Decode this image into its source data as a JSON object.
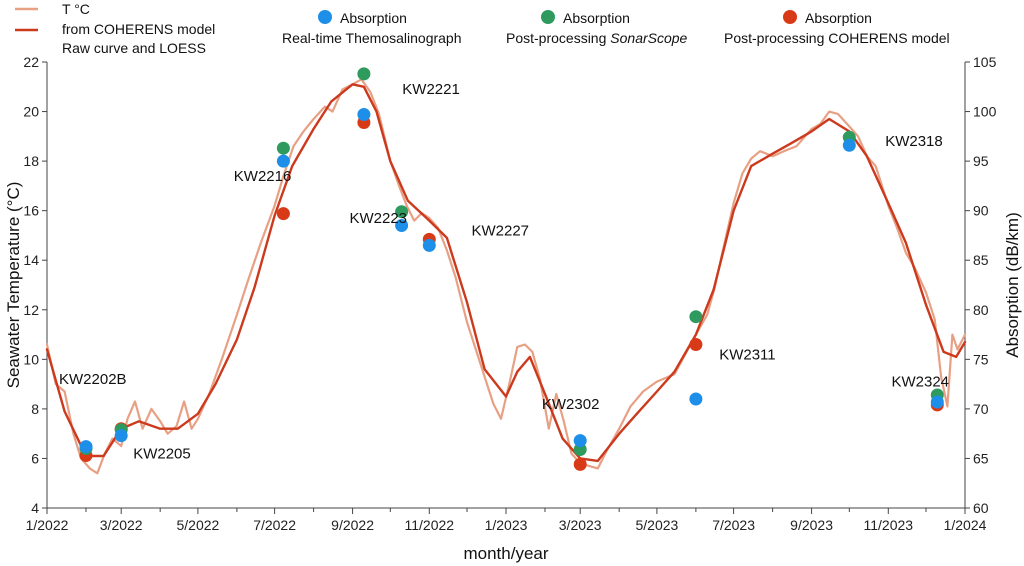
{
  "chart_data": {
    "type": "line",
    "xlabel": "month/year",
    "ylabel_left": "Seawater Temperature (°C)",
    "ylabel_right": "Absorption (dB/km)",
    "xlim": [
      "2022-01",
      "2024-01"
    ],
    "ylim_left": [
      4,
      22
    ],
    "ylim_right": [
      60,
      105
    ],
    "grid": false,
    "x_ticks": [
      "1/2022",
      "3/2022",
      "5/2022",
      "7/2022",
      "9/2022",
      "11/2022",
      "1/2023",
      "3/2023",
      "5/2023",
      "7/2023",
      "9/2023",
      "11/2023",
      "1/2024"
    ],
    "y_ticks_left": [
      4,
      6,
      8,
      10,
      12,
      14,
      16,
      18,
      20,
      22
    ],
    "y_ticks_right": [
      60,
      65,
      70,
      75,
      80,
      85,
      90,
      95,
      100,
      105
    ],
    "legend": {
      "placement": "top",
      "temp_label": "T °C",
      "temp_desc_1": "from COHERENS model",
      "temp_desc_2": "Raw curve and LOESS",
      "abs_label_1": "Absorption",
      "abs_desc_1": "Real-time Themosalinograph",
      "abs_label_2": "Absorption",
      "abs_desc_2a": "Post-processing ",
      "abs_desc_2b": "SonarScope",
      "abs_label_3": "Absorption",
      "abs_desc_3": "Post-processing COHERENS model"
    },
    "series": [
      {
        "kind": "raw",
        "axis": "left",
        "color": "#e8a084",
        "points": [
          [
            "2022-01-01",
            10.6
          ],
          [
            "2022-01-08",
            9.0
          ],
          [
            "2022-01-15",
            8.7
          ],
          [
            "2022-01-22",
            7.0
          ],
          [
            "2022-01-28",
            6.0
          ],
          [
            "2022-02-04",
            5.6
          ],
          [
            "2022-02-10",
            5.4
          ],
          [
            "2022-02-16",
            6.2
          ],
          [
            "2022-02-22",
            6.8
          ],
          [
            "2022-03-01",
            6.5
          ],
          [
            "2022-03-06",
            7.6
          ],
          [
            "2022-03-12",
            8.3
          ],
          [
            "2022-03-18",
            7.2
          ],
          [
            "2022-03-25",
            8.0
          ],
          [
            "2022-04-01",
            7.5
          ],
          [
            "2022-04-07",
            7.0
          ],
          [
            "2022-04-14",
            7.3
          ],
          [
            "2022-04-20",
            8.3
          ],
          [
            "2022-04-26",
            7.2
          ],
          [
            "2022-05-01",
            7.6
          ],
          [
            "2022-05-10",
            8.6
          ],
          [
            "2022-05-20",
            10.0
          ],
          [
            "2022-06-01",
            11.8
          ],
          [
            "2022-06-10",
            13.2
          ],
          [
            "2022-06-20",
            14.7
          ],
          [
            "2022-07-01",
            16.2
          ],
          [
            "2022-07-08",
            17.4
          ],
          [
            "2022-07-16",
            18.6
          ],
          [
            "2022-07-24",
            19.2
          ],
          [
            "2022-08-01",
            19.7
          ],
          [
            "2022-08-10",
            20.2
          ],
          [
            "2022-08-16",
            20.0
          ],
          [
            "2022-08-24",
            20.9
          ],
          [
            "2022-09-01",
            21.1
          ],
          [
            "2022-09-08",
            21.3
          ],
          [
            "2022-09-15",
            20.8
          ],
          [
            "2022-09-22",
            19.9
          ],
          [
            "2022-10-01",
            18.0
          ],
          [
            "2022-10-08",
            17.0
          ],
          [
            "2022-10-14",
            16.2
          ],
          [
            "2022-10-20",
            15.6
          ],
          [
            "2022-10-26",
            15.9
          ],
          [
            "2022-11-01",
            15.7
          ],
          [
            "2022-11-08",
            15.3
          ],
          [
            "2022-11-15",
            14.4
          ],
          [
            "2022-11-22",
            13.3
          ],
          [
            "2022-12-01",
            11.5
          ],
          [
            "2022-12-08",
            10.4
          ],
          [
            "2022-12-15",
            9.3
          ],
          [
            "2022-12-22",
            8.2
          ],
          [
            "2022-12-28",
            7.6
          ],
          [
            "2023-01-04",
            9.1
          ],
          [
            "2023-01-10",
            10.5
          ],
          [
            "2023-01-16",
            10.6
          ],
          [
            "2023-01-22",
            10.3
          ],
          [
            "2023-01-28",
            9.2
          ],
          [
            "2023-02-04",
            7.2
          ],
          [
            "2023-02-10",
            8.6
          ],
          [
            "2023-02-16",
            7.5
          ],
          [
            "2023-02-22",
            6.2
          ],
          [
            "2023-03-01",
            5.8
          ],
          [
            "2023-03-08",
            5.7
          ],
          [
            "2023-03-15",
            5.6
          ],
          [
            "2023-03-22",
            6.3
          ],
          [
            "2023-04-01",
            7.2
          ],
          [
            "2023-04-10",
            8.1
          ],
          [
            "2023-04-20",
            8.7
          ],
          [
            "2023-05-01",
            9.1
          ],
          [
            "2023-05-15",
            9.4
          ],
          [
            "2023-06-01",
            11.0
          ],
          [
            "2023-06-10",
            11.8
          ],
          [
            "2023-06-16",
            12.9
          ],
          [
            "2023-06-22",
            14.3
          ],
          [
            "2023-07-01",
            16.3
          ],
          [
            "2023-07-08",
            17.5
          ],
          [
            "2023-07-15",
            18.1
          ],
          [
            "2023-07-22",
            18.4
          ],
          [
            "2023-08-01",
            18.2
          ],
          [
            "2023-08-10",
            18.4
          ],
          [
            "2023-08-20",
            18.6
          ],
          [
            "2023-09-01",
            19.3
          ],
          [
            "2023-09-08",
            19.5
          ],
          [
            "2023-09-15",
            20.0
          ],
          [
            "2023-09-22",
            19.9
          ],
          [
            "2023-10-01",
            19.4
          ],
          [
            "2023-10-08",
            19.0
          ],
          [
            "2023-10-15",
            18.2
          ],
          [
            "2023-10-22",
            17.8
          ],
          [
            "2023-11-01",
            16.2
          ],
          [
            "2023-11-08",
            15.3
          ],
          [
            "2023-11-15",
            14.3
          ],
          [
            "2023-11-22",
            13.7
          ],
          [
            "2023-12-01",
            12.7
          ],
          [
            "2023-12-08",
            11.6
          ],
          [
            "2023-12-13",
            9.3
          ],
          [
            "2023-12-18",
            8.1
          ],
          [
            "2023-12-22",
            11.0
          ],
          [
            "2023-12-26",
            10.4
          ],
          [
            "2024-01-01",
            11.0
          ]
        ]
      },
      {
        "kind": "loess",
        "axis": "left",
        "color": "#cc3a1e",
        "points": [
          [
            "2022-01-01",
            10.4
          ],
          [
            "2022-01-15",
            7.9
          ],
          [
            "2022-02-01",
            6.1
          ],
          [
            "2022-02-15",
            6.1
          ],
          [
            "2022-03-01",
            7.2
          ],
          [
            "2022-03-15",
            7.5
          ],
          [
            "2022-04-01",
            7.2
          ],
          [
            "2022-04-15",
            7.2
          ],
          [
            "2022-05-01",
            7.8
          ],
          [
            "2022-05-15",
            9.0
          ],
          [
            "2022-06-01",
            10.8
          ],
          [
            "2022-06-15",
            12.9
          ],
          [
            "2022-07-01",
            15.8
          ],
          [
            "2022-07-15",
            17.8
          ],
          [
            "2022-08-01",
            19.3
          ],
          [
            "2022-08-15",
            20.4
          ],
          [
            "2022-09-01",
            21.1
          ],
          [
            "2022-09-10",
            21.0
          ],
          [
            "2022-09-20",
            20.0
          ],
          [
            "2022-10-01",
            18.0
          ],
          [
            "2022-10-15",
            16.4
          ],
          [
            "2022-11-01",
            15.6
          ],
          [
            "2022-11-15",
            14.9
          ],
          [
            "2022-12-01",
            12.3
          ],
          [
            "2022-12-15",
            9.6
          ],
          [
            "2023-01-01",
            8.5
          ],
          [
            "2023-01-10",
            9.5
          ],
          [
            "2023-01-20",
            10.1
          ],
          [
            "2023-02-01",
            8.6
          ],
          [
            "2023-02-15",
            6.8
          ],
          [
            "2023-03-01",
            6.0
          ],
          [
            "2023-03-15",
            5.9
          ],
          [
            "2023-04-01",
            7.0
          ],
          [
            "2023-04-15",
            7.8
          ],
          [
            "2023-05-01",
            8.7
          ],
          [
            "2023-05-15",
            9.5
          ],
          [
            "2023-06-01",
            11.0
          ],
          [
            "2023-06-15",
            12.8
          ],
          [
            "2023-07-01",
            16.0
          ],
          [
            "2023-07-15",
            17.8
          ],
          [
            "2023-08-01",
            18.3
          ],
          [
            "2023-08-15",
            18.7
          ],
          [
            "2023-09-01",
            19.2
          ],
          [
            "2023-09-15",
            19.7
          ],
          [
            "2023-10-01",
            19.2
          ],
          [
            "2023-10-15",
            18.2
          ],
          [
            "2023-11-01",
            16.3
          ],
          [
            "2023-11-15",
            14.7
          ],
          [
            "2023-12-01",
            12.2
          ],
          [
            "2023-12-15",
            10.3
          ],
          [
            "2023-12-25",
            10.1
          ],
          [
            "2024-01-01",
            10.7
          ]
        ]
      }
    ],
    "absorption_points": {
      "colors": {
        "realtime": "#1e8fe8",
        "sonarscope": "#2e9a5e",
        "coherens": "#d83a18"
      },
      "axis": "right",
      "realtime": [
        [
          "2022-02-01",
          66.2
        ],
        [
          "2022-03-01",
          67.3
        ],
        [
          "2022-07-08",
          95.0
        ],
        [
          "2022-09-10",
          99.7
        ],
        [
          "2022-10-10",
          88.5
        ],
        [
          "2022-11-01",
          86.5
        ],
        [
          "2023-03-01",
          66.8
        ],
        [
          "2023-06-01",
          71.0
        ],
        [
          "2023-10-01",
          96.6
        ],
        [
          "2023-12-10",
          70.7
        ]
      ],
      "sonarscope": [
        [
          "2022-02-01",
          66.0
        ],
        [
          "2022-03-01",
          67.9
        ],
        [
          "2022-07-08",
          96.3
        ],
        [
          "2022-09-10",
          103.8
        ],
        [
          "2022-10-10",
          89.9
        ],
        [
          "2023-03-01",
          65.9
        ],
        [
          "2023-06-01",
          79.3
        ],
        [
          "2023-10-01",
          97.4
        ],
        [
          "2023-12-10",
          71.4
        ]
      ],
      "coherens": [
        [
          "2022-02-01",
          65.3
        ],
        [
          "2022-03-01",
          68.0
        ],
        [
          "2022-07-08",
          89.7
        ],
        [
          "2022-09-10",
          98.9
        ],
        [
          "2022-11-01",
          87.1
        ],
        [
          "2023-03-01",
          64.4
        ],
        [
          "2023-06-01",
          76.5
        ],
        [
          "2023-12-10",
          70.4
        ]
      ]
    },
    "annotations": [
      {
        "text": "KW2202B",
        "x": "2022-01-01",
        "y_temp": 9.0
      },
      {
        "text": "KW2205",
        "x": "2022-03-01",
        "y_temp": 6.0
      },
      {
        "text": "KW2216",
        "x": "2022-05-20",
        "y_temp": 17.2
      },
      {
        "text": "KW2221",
        "x": "2022-10-01",
        "y_temp": 20.7
      },
      {
        "text": "KW2223",
        "x": "2022-08-20",
        "y_temp": 15.5
      },
      {
        "text": "KW2227",
        "x": "2022-11-25",
        "y_temp": 15.0
      },
      {
        "text": "KW2302",
        "x": "2023-01-20",
        "y_temp": 8.0
      },
      {
        "text": "KW2311",
        "x": "2023-06-10",
        "y_temp": 10.0
      },
      {
        "text": "KW2318",
        "x": "2023-10-20",
        "y_temp": 18.6
      },
      {
        "text": "KW2324",
        "x": "2023-10-25",
        "y_temp": 8.9
      }
    ]
  }
}
